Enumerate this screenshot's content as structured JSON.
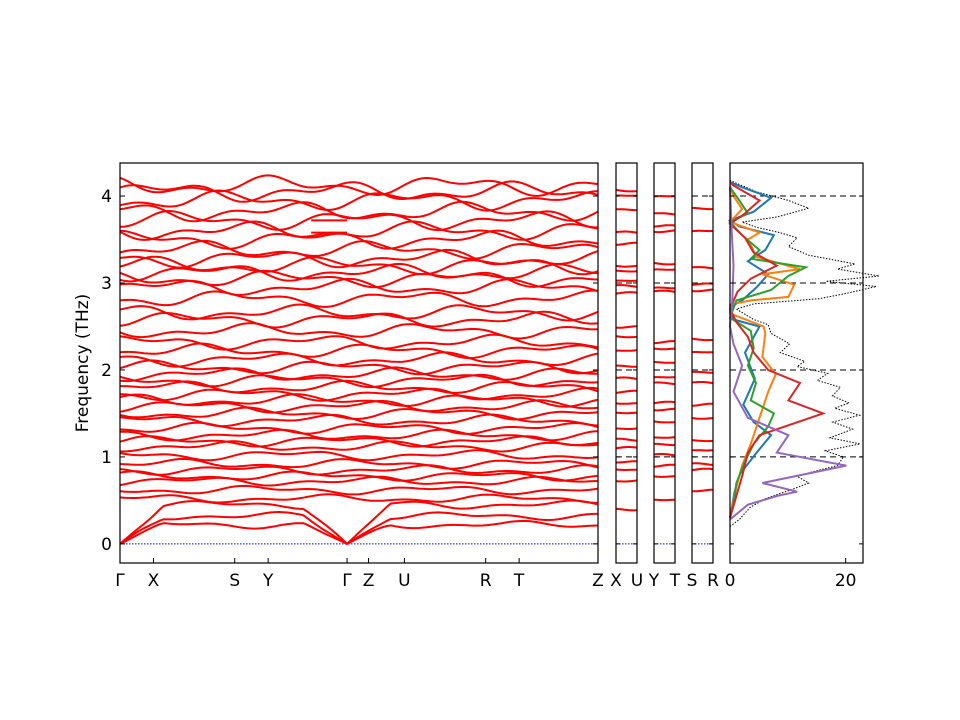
{
  "chart_data": {
    "type": "line",
    "ylabel": "Frequency (THz)",
    "ylim": [
      -0.22,
      4.38
    ],
    "yticks": [
      0,
      1,
      2,
      3,
      4
    ],
    "hlines": [
      0,
      1,
      2,
      3,
      4
    ],
    "colors": {
      "bands": "#ff0000",
      "zero_line": "#0000ff",
      "dos_total": "#000000",
      "dos_series": [
        "#1f77b4",
        "#ff7f0e",
        "#2ca02c",
        "#d62728",
        "#9467bd"
      ]
    },
    "band_panels": [
      {
        "xlim": [
          0,
          10
        ],
        "ticks": [
          {
            "x": 0,
            "label": "Γ"
          },
          {
            "x": 0.7,
            "label": "X"
          },
          {
            "x": 2.4,
            "label": "S"
          },
          {
            "x": 3.1,
            "label": "Y"
          },
          {
            "x": 4.75,
            "label": "Γ"
          },
          {
            "x": 5.2,
            "label": "Z"
          },
          {
            "x": 5.95,
            "label": "U"
          },
          {
            "x": 7.65,
            "label": "R"
          },
          {
            "x": 8.35,
            "label": "T"
          },
          {
            "x": 10,
            "label": "Z"
          }
        ],
        "acoustic_gamma": [
          0,
          4.75
        ],
        "branch_split": 4.75,
        "bands": [
          0.22,
          0.32,
          0.45,
          0.52,
          0.62,
          0.72,
          0.78,
          0.85,
          0.92,
          1.02,
          1.12,
          1.18,
          1.25,
          1.33,
          1.42,
          1.5,
          1.58,
          1.65,
          1.72,
          1.8,
          1.88,
          1.95,
          2.03,
          2.12,
          2.22,
          2.32,
          2.45,
          2.58,
          2.66,
          2.82,
          2.95,
          3.05,
          3.12,
          3.2,
          3.28,
          3.38,
          3.5,
          3.6,
          3.72,
          3.82,
          3.95,
          4.05,
          4.12
        ],
        "flat_ends": [
          3.58,
          3.72
        ]
      },
      {
        "xlim": [
          0,
          1
        ],
        "ticks": [
          {
            "x": 0,
            "label": "X"
          },
          {
            "x": 1,
            "label": "U"
          }
        ],
        "bands": [
          0.4,
          0.72,
          0.85,
          0.95,
          1.1,
          1.2,
          1.33,
          1.5,
          1.62,
          1.75,
          1.9,
          2.05,
          2.22,
          2.38,
          2.5,
          2.88,
          2.97,
          3.03,
          3.13,
          3.2,
          3.45,
          3.58,
          3.85,
          4.0,
          4.06
        ]
      },
      {
        "xlim": [
          0,
          1
        ],
        "ticks": [
          {
            "x": 0,
            "label": "Y"
          },
          {
            "x": 1,
            "label": "T"
          }
        ],
        "bands": [
          0.5,
          0.78,
          0.9,
          1.02,
          1.15,
          1.22,
          1.4,
          1.55,
          1.62,
          1.85,
          1.92,
          2.08,
          2.25,
          2.32,
          2.9,
          2.95,
          3.15,
          3.22,
          3.6,
          3.65,
          3.8,
          4.0
        ]
      },
      {
        "xlim": [
          0,
          1
        ],
        "ticks": [
          {
            "x": 0,
            "label": "S"
          },
          {
            "x": 1,
            "label": "R"
          }
        ],
        "bands": [
          0.62,
          0.85,
          0.92,
          1.08,
          1.18,
          1.45,
          1.6,
          1.85,
          1.98,
          2.2,
          2.35,
          2.92,
          2.98,
          3.18,
          3.6,
          3.85
        ]
      }
    ],
    "dos_panel": {
      "xlim": [
        0,
        23
      ],
      "xticks": [
        0,
        20
      ],
      "total": [
        [
          0.0,
          0.2
        ],
        [
          1.6,
          0.28
        ],
        [
          3.5,
          0.42
        ],
        [
          6.1,
          0.52
        ],
        [
          8.7,
          0.58
        ],
        [
          10.5,
          0.62
        ],
        [
          13.6,
          0.7
        ],
        [
          11.5,
          0.78
        ],
        [
          16.1,
          0.86
        ],
        [
          18.6,
          0.9
        ],
        [
          19.6,
          1.0
        ],
        [
          16.5,
          1.07
        ],
        [
          22.5,
          1.15
        ],
        [
          17.3,
          1.22
        ],
        [
          21.2,
          1.32
        ],
        [
          17.8,
          1.4
        ],
        [
          22.4,
          1.48
        ],
        [
          18.1,
          1.56
        ],
        [
          20.6,
          1.62
        ],
        [
          17.7,
          1.7
        ],
        [
          19.1,
          1.8
        ],
        [
          15.1,
          1.88
        ],
        [
          16.9,
          1.96
        ],
        [
          11.6,
          2.04
        ],
        [
          12.9,
          2.1
        ],
        [
          8.7,
          2.2
        ],
        [
          10.3,
          2.3
        ],
        [
          7.1,
          2.42
        ],
        [
          6.6,
          2.52
        ],
        [
          4.1,
          2.58
        ],
        [
          1.1,
          2.7
        ],
        [
          4.1,
          2.76
        ],
        [
          15.4,
          2.82
        ],
        [
          20.1,
          2.88
        ],
        [
          25.3,
          2.96
        ],
        [
          16.6,
          3.02
        ],
        [
          25.8,
          3.08
        ],
        [
          18.6,
          3.16
        ],
        [
          21.6,
          3.22
        ],
        [
          13.6,
          3.32
        ],
        [
          10.1,
          3.42
        ],
        [
          11.6,
          3.52
        ],
        [
          8.6,
          3.58
        ],
        [
          4.6,
          3.64
        ],
        [
          2.1,
          3.7
        ],
        [
          8.2,
          3.76
        ],
        [
          13.6,
          3.86
        ],
        [
          10.1,
          3.95
        ],
        [
          4.5,
          4.05
        ],
        [
          2.1,
          4.12
        ],
        [
          0.0,
          4.18
        ]
      ],
      "series": [
        {
          "values": [
            [
              0.0,
              0.3
            ],
            [
              0.8,
              0.6
            ],
            [
              1.7,
              0.8
            ],
            [
              4.6,
              1.05
            ],
            [
              7.1,
              1.25
            ],
            [
              4.1,
              1.4
            ],
            [
              2.3,
              1.6
            ],
            [
              4.3,
              1.9
            ],
            [
              2.6,
              2.2
            ],
            [
              5.1,
              2.5
            ],
            [
              0.6,
              2.58
            ],
            [
              0.0,
              2.72
            ],
            [
              2.1,
              2.8
            ],
            [
              4.6,
              2.95
            ],
            [
              6.6,
              3.1
            ],
            [
              3.1,
              3.25
            ],
            [
              6.1,
              3.38
            ],
            [
              7.6,
              3.55
            ],
            [
              1.6,
              3.65
            ],
            [
              0.0,
              3.72
            ],
            [
              4.1,
              3.82
            ],
            [
              7.1,
              3.98
            ],
            [
              2.1,
              4.1
            ],
            [
              0.0,
              4.16
            ]
          ]
        },
        {
          "values": [
            [
              0.0,
              0.3
            ],
            [
              1.1,
              0.65
            ],
            [
              2.1,
              0.9
            ],
            [
              3.6,
              1.15
            ],
            [
              5.1,
              1.45
            ],
            [
              6.6,
              1.75
            ],
            [
              7.9,
              1.95
            ],
            [
              5.6,
              2.15
            ],
            [
              6.1,
              2.42
            ],
            [
              5.8,
              2.5
            ],
            [
              0.0,
              2.65
            ],
            [
              0.0,
              2.75
            ],
            [
              3.6,
              2.8
            ],
            [
              10.1,
              2.84
            ],
            [
              11.1,
              2.98
            ],
            [
              5.6,
              3.1
            ],
            [
              12.1,
              3.16
            ],
            [
              4.6,
              3.3
            ],
            [
              3.1,
              3.5
            ],
            [
              5.1,
              3.58
            ],
            [
              0.0,
              3.7
            ],
            [
              2.1,
              3.85
            ],
            [
              0.6,
              4.0
            ],
            [
              0.0,
              4.12
            ]
          ]
        },
        {
          "values": [
            [
              0.0,
              0.3
            ],
            [
              0.6,
              0.45
            ],
            [
              1.1,
              0.7
            ],
            [
              2.6,
              0.95
            ],
            [
              4.1,
              1.15
            ],
            [
              6.6,
              1.35
            ],
            [
              7.6,
              1.5
            ],
            [
              3.6,
              1.65
            ],
            [
              4.5,
              1.85
            ],
            [
              3.1,
              2.05
            ],
            [
              4.1,
              2.25
            ],
            [
              3.6,
              2.45
            ],
            [
              0.0,
              2.6
            ],
            [
              1.1,
              2.8
            ],
            [
              7.1,
              2.92
            ],
            [
              10.1,
              3.08
            ],
            [
              13.1,
              3.18
            ],
            [
              3.6,
              3.28
            ],
            [
              5.1,
              3.38
            ],
            [
              2.1,
              3.55
            ],
            [
              0.0,
              3.7
            ],
            [
              3.1,
              3.8
            ],
            [
              1.6,
              3.95
            ],
            [
              0.0,
              4.1
            ]
          ]
        },
        {
          "values": [
            [
              0.0,
              0.3
            ],
            [
              1.1,
              0.55
            ],
            [
              2.2,
              0.8
            ],
            [
              3.1,
              1.05
            ],
            [
              5.1,
              1.25
            ],
            [
              16.1,
              1.5
            ],
            [
              10.1,
              1.65
            ],
            [
              12.1,
              1.85
            ],
            [
              6.6,
              2.0
            ],
            [
              4.1,
              2.2
            ],
            [
              3.1,
              2.38
            ],
            [
              1.1,
              2.55
            ],
            [
              0.0,
              2.7
            ],
            [
              1.3,
              2.9
            ],
            [
              3.6,
              3.05
            ],
            [
              8.1,
              3.2
            ],
            [
              4.1,
              3.35
            ],
            [
              2.6,
              3.52
            ],
            [
              0.0,
              3.68
            ],
            [
              2.6,
              3.8
            ],
            [
              5.1,
              3.95
            ],
            [
              1.1,
              4.1
            ],
            [
              0.0,
              4.15
            ]
          ]
        },
        {
          "values": [
            [
              0.0,
              0.28
            ],
            [
              3.1,
              0.45
            ],
            [
              8.1,
              0.55
            ],
            [
              11.6,
              0.6
            ],
            [
              5.6,
              0.7
            ],
            [
              20.1,
              0.9
            ],
            [
              8.1,
              1.05
            ],
            [
              10.1,
              1.25
            ],
            [
              3.1,
              1.45
            ],
            [
              0.6,
              1.75
            ],
            [
              2.1,
              2.05
            ],
            [
              0.6,
              2.3
            ],
            [
              0.0,
              2.5
            ],
            [
              0.4,
              2.8
            ],
            [
              0.6,
              3.2
            ],
            [
              0.3,
              3.6
            ],
            [
              0.0,
              4.1
            ]
          ]
        }
      ]
    }
  }
}
